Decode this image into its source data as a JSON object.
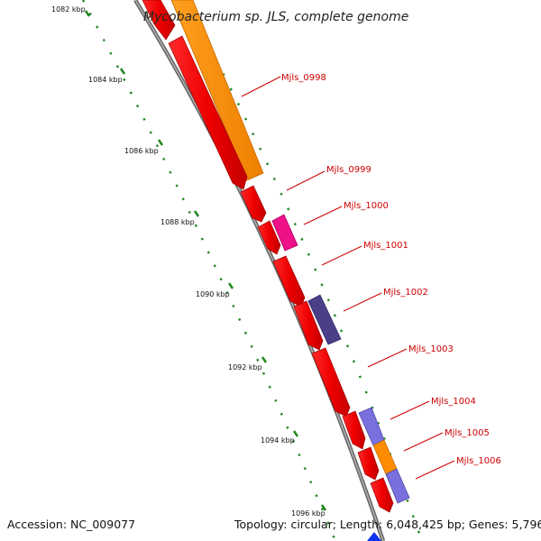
{
  "title": "Mycobacterium sp. JLS, complete genome",
  "footer": {
    "accession": "Accession: NC_009077",
    "topology": "Topology: circular; Length: 6,048,425 bp; Genes: 5,796"
  },
  "ticks": [
    "1082 kbp",
    "1084 kbp",
    "1086 kbp",
    "1088 kbp",
    "1090 kbp",
    "1092 kbp",
    "1094 kbp",
    "1096 kbp"
  ],
  "gene_labels": [
    "Mjls_0998",
    "Mjls_0999",
    "Mjls_1000",
    "Mjls_1001",
    "Mjls_1002",
    "Mjls_1003",
    "Mjls_1004",
    "Mjls_1005",
    "Mjls_1006"
  ],
  "colors": {
    "cds_red": "#ee0000",
    "orange": "#ff8c00",
    "pink": "#ee1188",
    "dark_purple": "#4a3f88",
    "light_purple": "#7a70dd",
    "backbone": "#888888",
    "tick_green": "#228822",
    "label_red": "#cc0000"
  }
}
